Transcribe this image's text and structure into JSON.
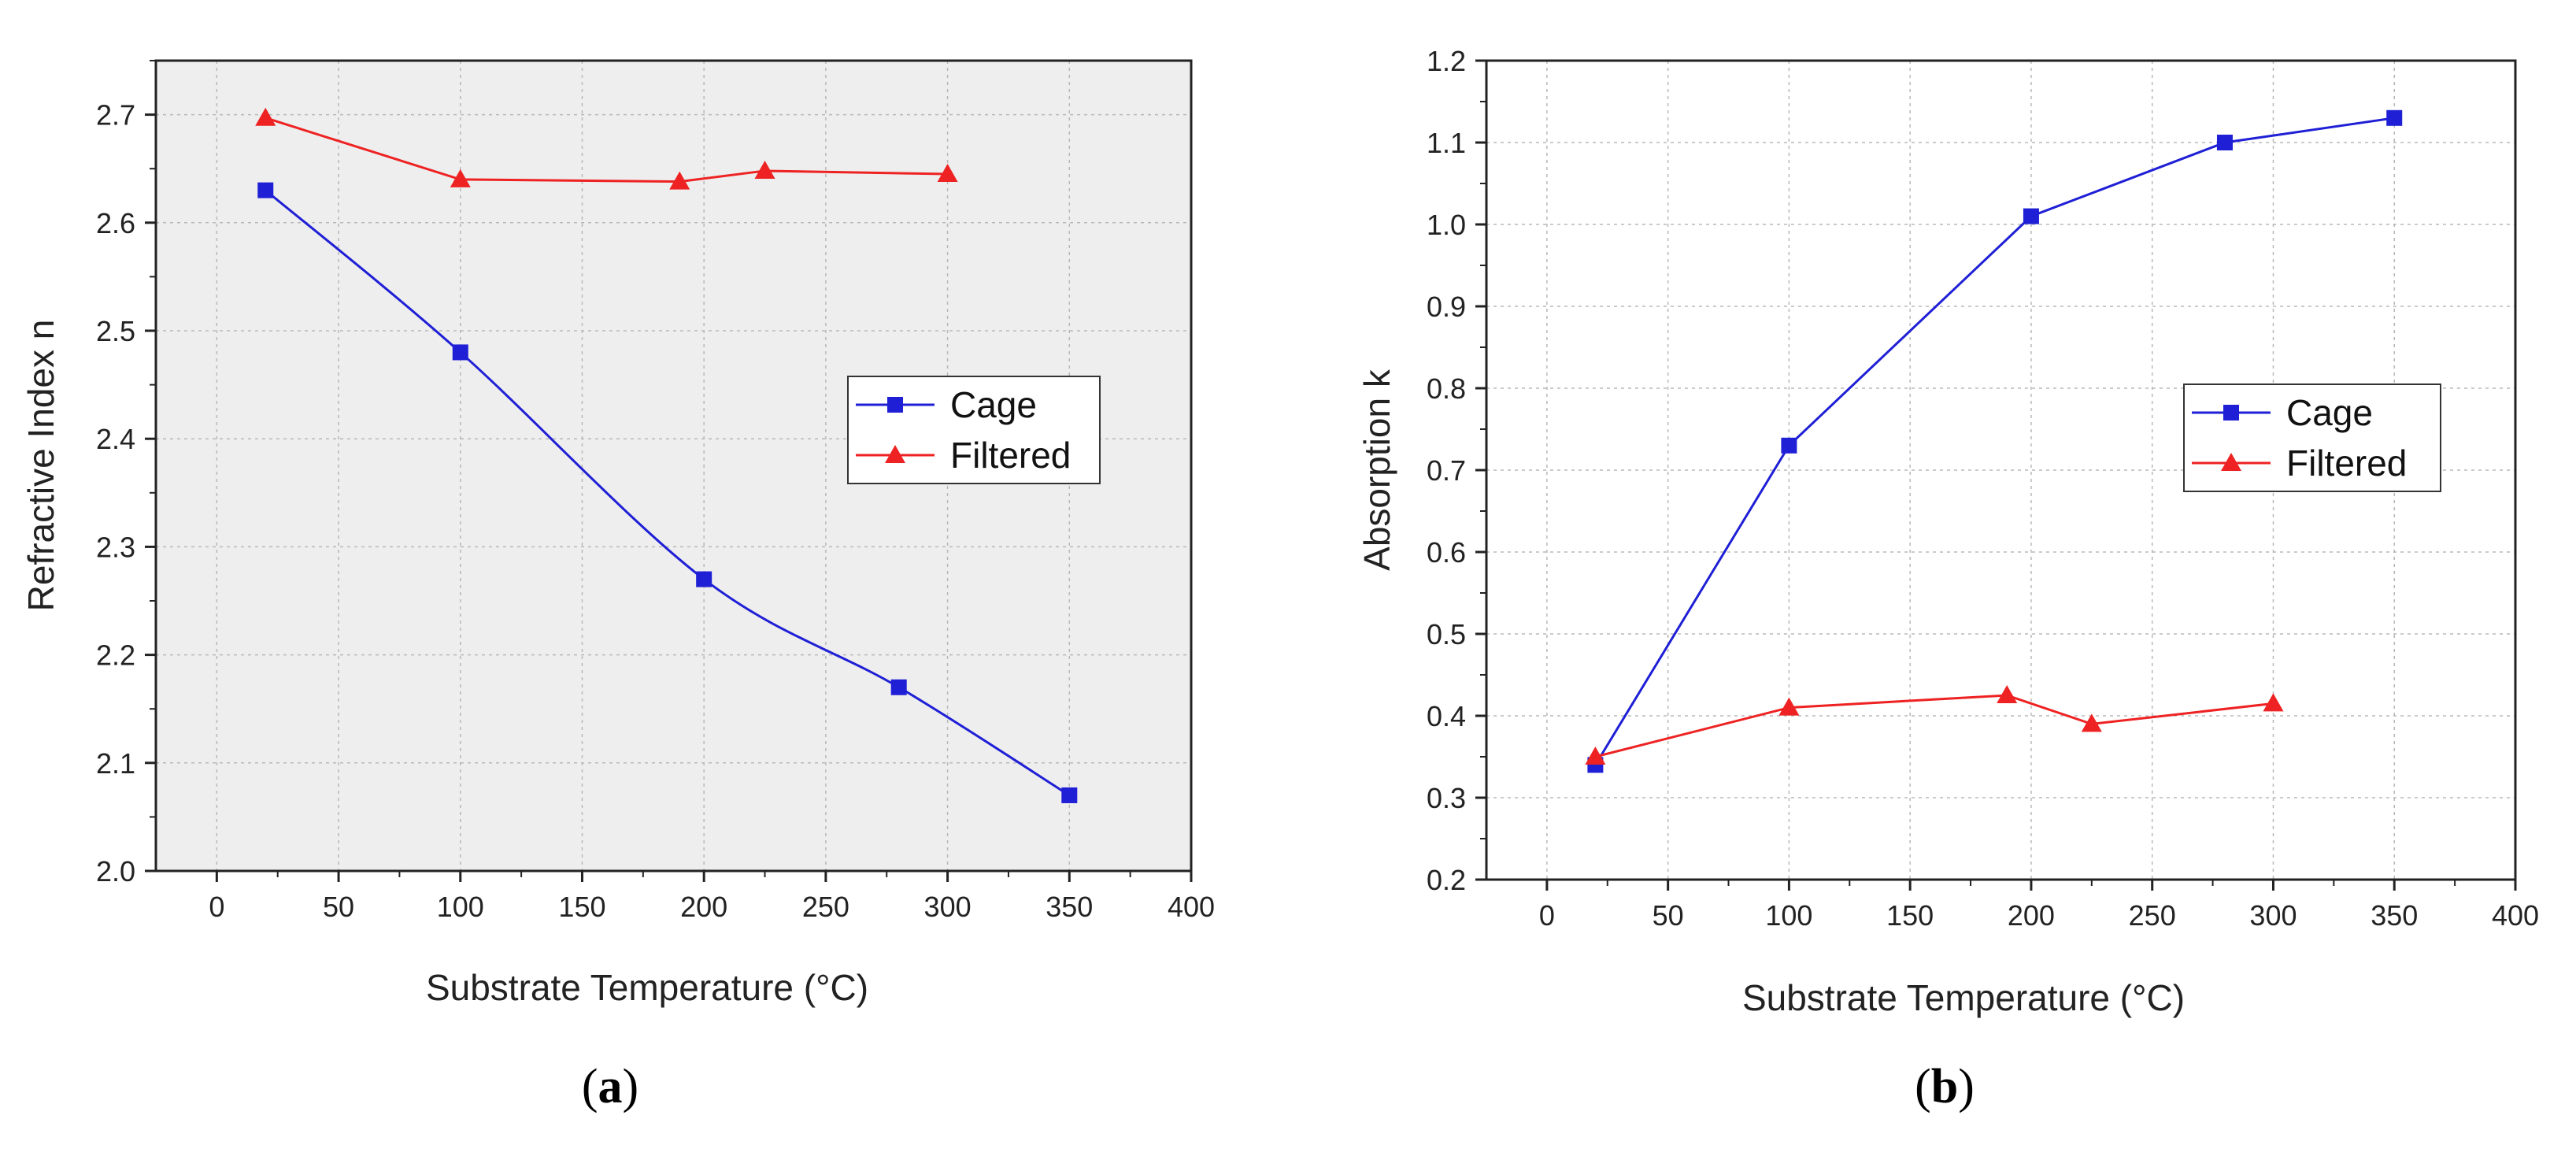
{
  "chart_data": [
    {
      "type": "line",
      "caption": "(a)",
      "caption_open": "(",
      "caption_letter": "a",
      "caption_close": ")",
      "title": "",
      "xlabel": "Substrate Temperature (°C)",
      "ylabel": "Refractive Index n",
      "xlim": [
        -25,
        400
      ],
      "ylim": [
        2.0,
        2.75
      ],
      "xticks": [
        0,
        50,
        100,
        150,
        200,
        250,
        300,
        350,
        400
      ],
      "yticks": [
        2.0,
        2.1,
        2.2,
        2.3,
        2.4,
        2.5,
        2.6,
        2.7
      ],
      "grid": true,
      "legend_position": "center-right",
      "series": [
        {
          "name": "Cage",
          "color": "#1f1fd6",
          "marker": "square",
          "smooth": true,
          "x": [
            20,
            100,
            200,
            280,
            350
          ],
          "y": [
            2.63,
            2.48,
            2.27,
            2.17,
            2.07
          ]
        },
        {
          "name": "Filtered",
          "color": "#ee2222",
          "marker": "triangle",
          "smooth": false,
          "x": [
            20,
            100,
            190,
            225,
            300
          ],
          "y": [
            2.697,
            2.64,
            2.638,
            2.648,
            2.645
          ]
        }
      ]
    },
    {
      "type": "line",
      "caption": "(b)",
      "caption_open": "(",
      "caption_letter": "b",
      "caption_close": ")",
      "title": "",
      "xlabel": "Substrate Temperature (°C)",
      "ylabel": "Absorption k",
      "xlim": [
        -25,
        400
      ],
      "ylim": [
        0.2,
        1.2
      ],
      "xticks": [
        0,
        50,
        100,
        150,
        200,
        250,
        300,
        350,
        400
      ],
      "yticks": [
        0.2,
        0.3,
        0.4,
        0.5,
        0.6,
        0.7,
        0.8,
        0.9,
        1.0,
        1.1,
        1.2
      ],
      "grid": true,
      "legend_position": "center-right",
      "series": [
        {
          "name": "Cage",
          "color": "#1f1fd6",
          "marker": "square",
          "smooth": false,
          "x": [
            20,
            100,
            200,
            280,
            350
          ],
          "y": [
            0.34,
            0.73,
            1.01,
            1.1,
            1.13
          ]
        },
        {
          "name": "Filtered",
          "color": "#ee2222",
          "marker": "triangle",
          "smooth": false,
          "x": [
            20,
            100,
            190,
            225,
            300
          ],
          "y": [
            0.35,
            0.41,
            0.425,
            0.39,
            0.415
          ]
        }
      ]
    }
  ]
}
